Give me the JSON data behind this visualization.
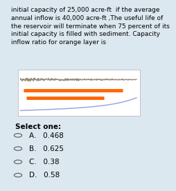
{
  "background_color": "#dce8f0",
  "plot_bg": "#ffffff",
  "gray_line_color": "#8a7d6a",
  "orange_line1_color": "#ff6600",
  "orange_line2_color": "#ff6600",
  "blue_line_color": "#8899dd",
  "title_text": "initial capacity of 25,000 acre-ft  if the average\nannual inflow is 40,000 acre-ft ,The useful life of\nthe reservoir will terminate when 75 percent of its\ninitial capacity is filled with sediment. Capacity\ninflow ratio for orange layer is",
  "select_one_text": "Select one:",
  "options": [
    "A.   0.468",
    "B.   0.625",
    "C.   0.38",
    "D.   0.58"
  ],
  "title_fontsize": 6.5,
  "option_fontsize": 7.5,
  "select_fontsize": 7.5
}
